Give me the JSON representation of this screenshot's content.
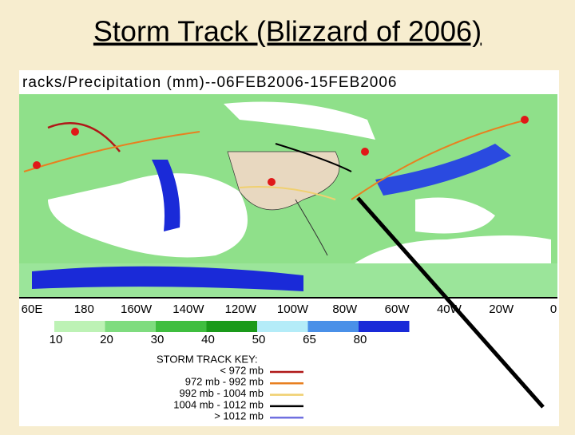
{
  "title": "Storm Track (Blizzard of 2006)",
  "map": {
    "header": "racks/Precipitation (mm)--06FEB2006-15FEB2006",
    "longitudes": [
      "60E",
      "180",
      "160W",
      "140W",
      "120W",
      "100W",
      "80W",
      "60W",
      "40W",
      "20W",
      "0"
    ]
  },
  "legend": {
    "labels": [
      "10",
      "20",
      "30",
      "40",
      "50",
      "65",
      "80"
    ],
    "colors": [
      "#bdf2b5",
      "#7fdc7f",
      "#3fbe3f",
      "#1a9a1a",
      "#b4ecf8",
      "#4a90e8",
      "#1a2ad8"
    ]
  },
  "storm_key": {
    "title": "STORM TRACK KEY:",
    "entries": [
      {
        "label": "< 972 mb",
        "color": "#b01818"
      },
      {
        "label": "972 mb - 992 mb",
        "color": "#e88020"
      },
      {
        "label": "992 mb - 1004 mb",
        "color": "#f0d070"
      },
      {
        "label": "1004 mb - 1012 mb",
        "color": "#000000"
      },
      {
        "label": "> 1012 mb",
        "color": "#7070e0"
      }
    ]
  }
}
